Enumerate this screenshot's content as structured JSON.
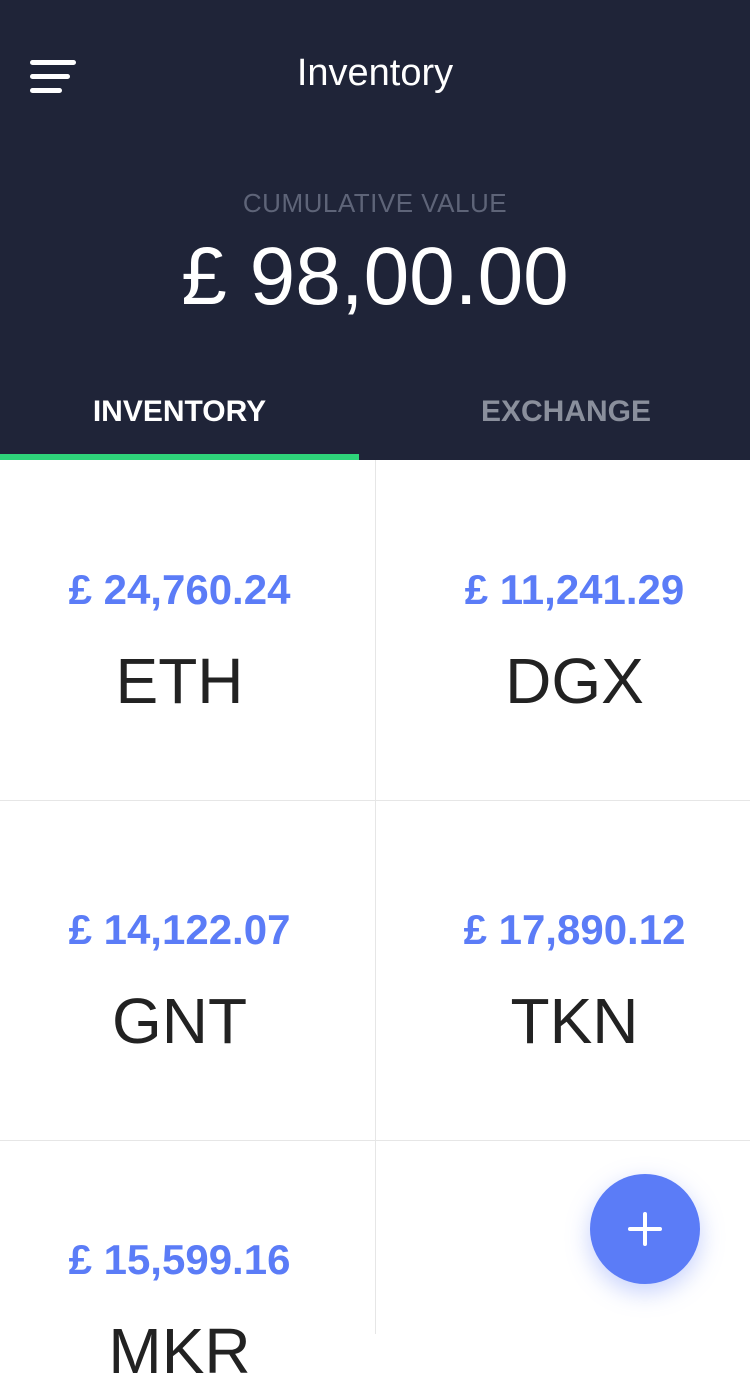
{
  "header": {
    "title": "Inventory"
  },
  "summary": {
    "label": "CUMULATIVE VALUE",
    "value": "£ 98,00.00"
  },
  "tabs": [
    "INVENTORY",
    "EXCHANGE"
  ],
  "assets": [
    {
      "value": "£ 24,760.24",
      "symbol": "ETH"
    },
    {
      "value": "£ 11,241.29",
      "symbol": "DGX"
    },
    {
      "value": "£ 14,122.07",
      "symbol": "GNT"
    },
    {
      "value": "£ 17,890.12",
      "symbol": "TKN"
    },
    {
      "value": "£ 15,599.16",
      "symbol": "MKR"
    }
  ]
}
